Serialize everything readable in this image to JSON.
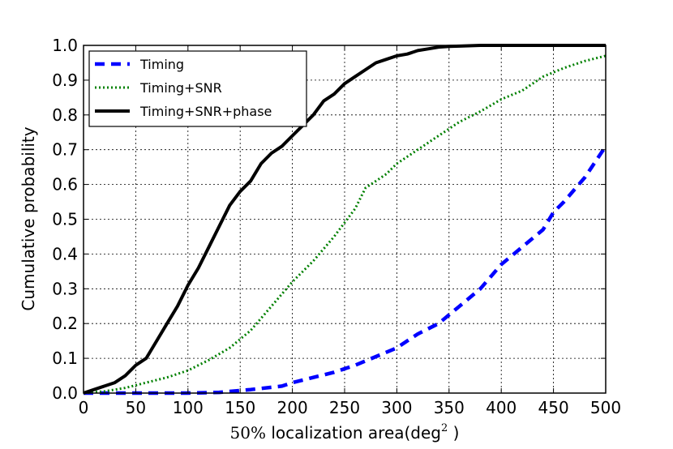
{
  "chart_data": {
    "type": "line",
    "title": "",
    "xlabel_prefix": "50%",
    "xlabel_text": " localization area(deg",
    "xlabel_sup": "2",
    "xlabel_suffix": " )",
    "ylabel": "Cumulative probability",
    "xlim": [
      0,
      500
    ],
    "ylim": [
      0.0,
      1.0
    ],
    "xticks": [
      0,
      50,
      100,
      150,
      200,
      250,
      300,
      350,
      400,
      450,
      500
    ],
    "yticks": [
      0.0,
      0.1,
      0.2,
      0.3,
      0.4,
      0.5,
      0.6,
      0.7,
      0.8,
      0.9,
      1.0
    ],
    "xtick_labels": [
      "0",
      "50",
      "100",
      "150",
      "200",
      "250",
      "300",
      "350",
      "400",
      "450",
      "500"
    ],
    "ytick_labels": [
      "0.0",
      "0.1",
      "0.2",
      "0.3",
      "0.4",
      "0.5",
      "0.6",
      "0.7",
      "0.8",
      "0.9",
      "1.0"
    ],
    "grid": true,
    "legend_position": "top-left",
    "series": [
      {
        "name": "Timing",
        "color": "#0000ff",
        "style": "dashed",
        "x": [
          0,
          50,
          100,
          130,
          160,
          190,
          200,
          220,
          240,
          260,
          280,
          300,
          320,
          340,
          360,
          380,
          400,
          420,
          440,
          450,
          460,
          480,
          500
        ],
        "y": [
          0.0,
          0.0,
          0.0,
          0.002,
          0.01,
          0.02,
          0.03,
          0.045,
          0.06,
          0.08,
          0.105,
          0.13,
          0.17,
          0.2,
          0.25,
          0.3,
          0.37,
          0.42,
          0.47,
          0.52,
          0.55,
          0.62,
          0.71
        ]
      },
      {
        "name": "Timing+SNR",
        "color": "#008000",
        "style": "dotted",
        "x": [
          0,
          20,
          40,
          60,
          80,
          100,
          120,
          140,
          160,
          180,
          200,
          220,
          240,
          260,
          270,
          290,
          300,
          320,
          340,
          360,
          380,
          400,
          420,
          440,
          460,
          480,
          500
        ],
        "y": [
          0.0,
          0.005,
          0.015,
          0.03,
          0.045,
          0.065,
          0.095,
          0.13,
          0.18,
          0.25,
          0.32,
          0.38,
          0.45,
          0.53,
          0.59,
          0.63,
          0.66,
          0.7,
          0.74,
          0.78,
          0.81,
          0.845,
          0.87,
          0.91,
          0.935,
          0.955,
          0.97
        ]
      },
      {
        "name": "Timing+SNR+phase",
        "color": "#000000",
        "style": "solid",
        "x": [
          0,
          10,
          20,
          30,
          40,
          50,
          60,
          70,
          80,
          90,
          100,
          110,
          120,
          130,
          140,
          150,
          160,
          170,
          180,
          190,
          200,
          210,
          220,
          230,
          240,
          250,
          260,
          270,
          280,
          290,
          300,
          310,
          320,
          330,
          340,
          350,
          360,
          380,
          400,
          450,
          500
        ],
        "y": [
          0.0,
          0.01,
          0.02,
          0.03,
          0.05,
          0.08,
          0.1,
          0.15,
          0.2,
          0.25,
          0.31,
          0.36,
          0.42,
          0.48,
          0.54,
          0.58,
          0.61,
          0.66,
          0.69,
          0.71,
          0.74,
          0.77,
          0.8,
          0.84,
          0.86,
          0.89,
          0.91,
          0.93,
          0.95,
          0.96,
          0.97,
          0.975,
          0.985,
          0.99,
          0.995,
          0.997,
          0.998,
          1.0,
          1.0,
          1.0,
          1.0
        ]
      }
    ]
  }
}
